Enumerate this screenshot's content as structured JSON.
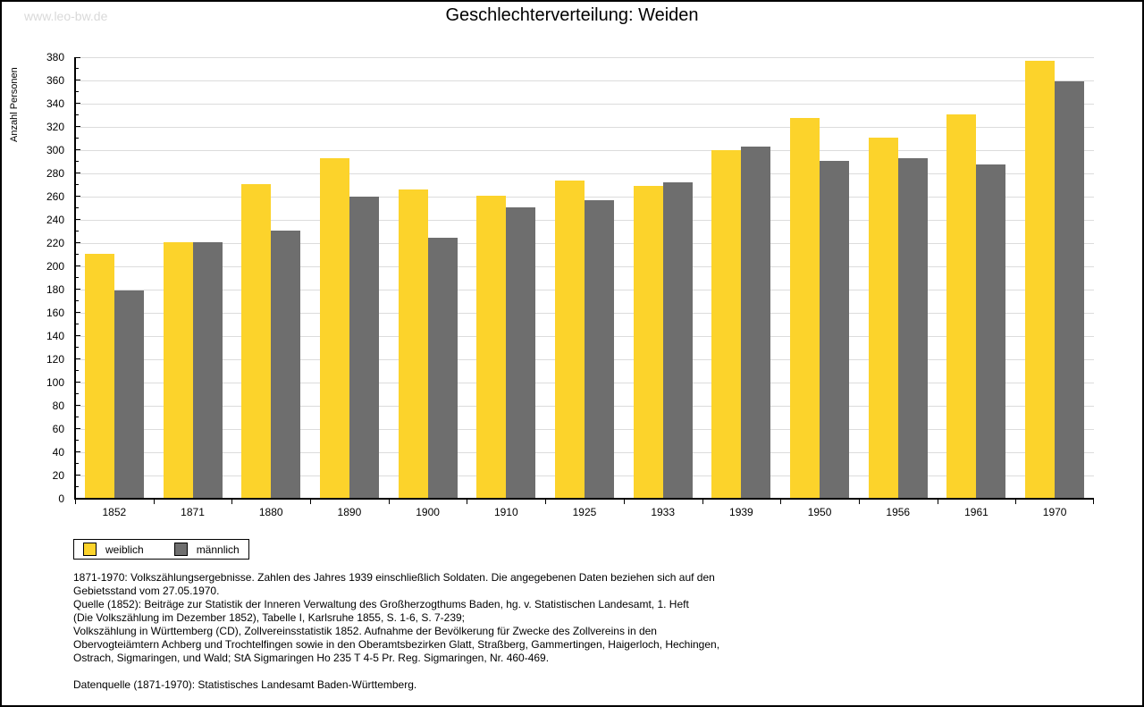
{
  "watermark": "www.leo-bw.de",
  "header": {
    "title": "Geschlechterverteilung: Weiden"
  },
  "chart_data": {
    "type": "bar",
    "title": "Geschlechterverteilung: Weiden",
    "xlabel": "",
    "ylabel": "Anzahl Personen",
    "ylim": [
      0,
      380
    ],
    "ytick_step": 20,
    "minor_tick_step": 10,
    "grid": true,
    "legend_position": "bottom-left",
    "categories": [
      "1852",
      "1871",
      "1880",
      "1890",
      "1900",
      "1910",
      "1925",
      "1933",
      "1939",
      "1950",
      "1956",
      "1961",
      "1970"
    ],
    "series": [
      {
        "name": "weiblich",
        "color": "#fcd32b",
        "values": [
          211,
          221,
          271,
          293,
          266,
          261,
          274,
          269,
          300,
          328,
          311,
          331,
          377
        ]
      },
      {
        "name": "männlich",
        "color": "#6e6e6e",
        "values": [
          179,
          221,
          231,
          260,
          225,
          251,
          257,
          272,
          303,
          291,
          293,
          288,
          359
        ]
      }
    ]
  },
  "footnotes": {
    "lines": [
      "1871-1970: Volkszählungsergebnisse. Zahlen des Jahres 1939 einschließlich Soldaten. Die angegebenen Daten beziehen sich auf den",
      "Gebietsstand vom 27.05.1970.",
      "Quelle (1852): Beiträge zur Statistik der Inneren Verwaltung des Großherzogthums Baden, hg. v. Statistischen Landesamt, 1. Heft",
      "(Die Volkszählung im Dezember 1852), Tabelle I, Karlsruhe 1855, S. 1-6, S. 7-239;",
      "Volkszählung in Württemberg (CD), Zollvereinsstatistik 1852. Aufnahme der Bevölkerung für Zwecke des Zollvereins in den",
      "Obervogteiämtern Achberg und Trochtelfingen sowie in den Oberamtsbezirken Glatt, Straßberg, Gammertingen, Haigerloch, Hechingen,",
      "Ostrach, Sigmaringen, und Wald; StA Sigmaringen Ho 235 T 4-5 Pr. Reg. Sigmaringen, Nr. 460-469."
    ],
    "datasource": "Datenquelle (1871-1970): Statistisches Landesamt Baden-Württemberg."
  }
}
